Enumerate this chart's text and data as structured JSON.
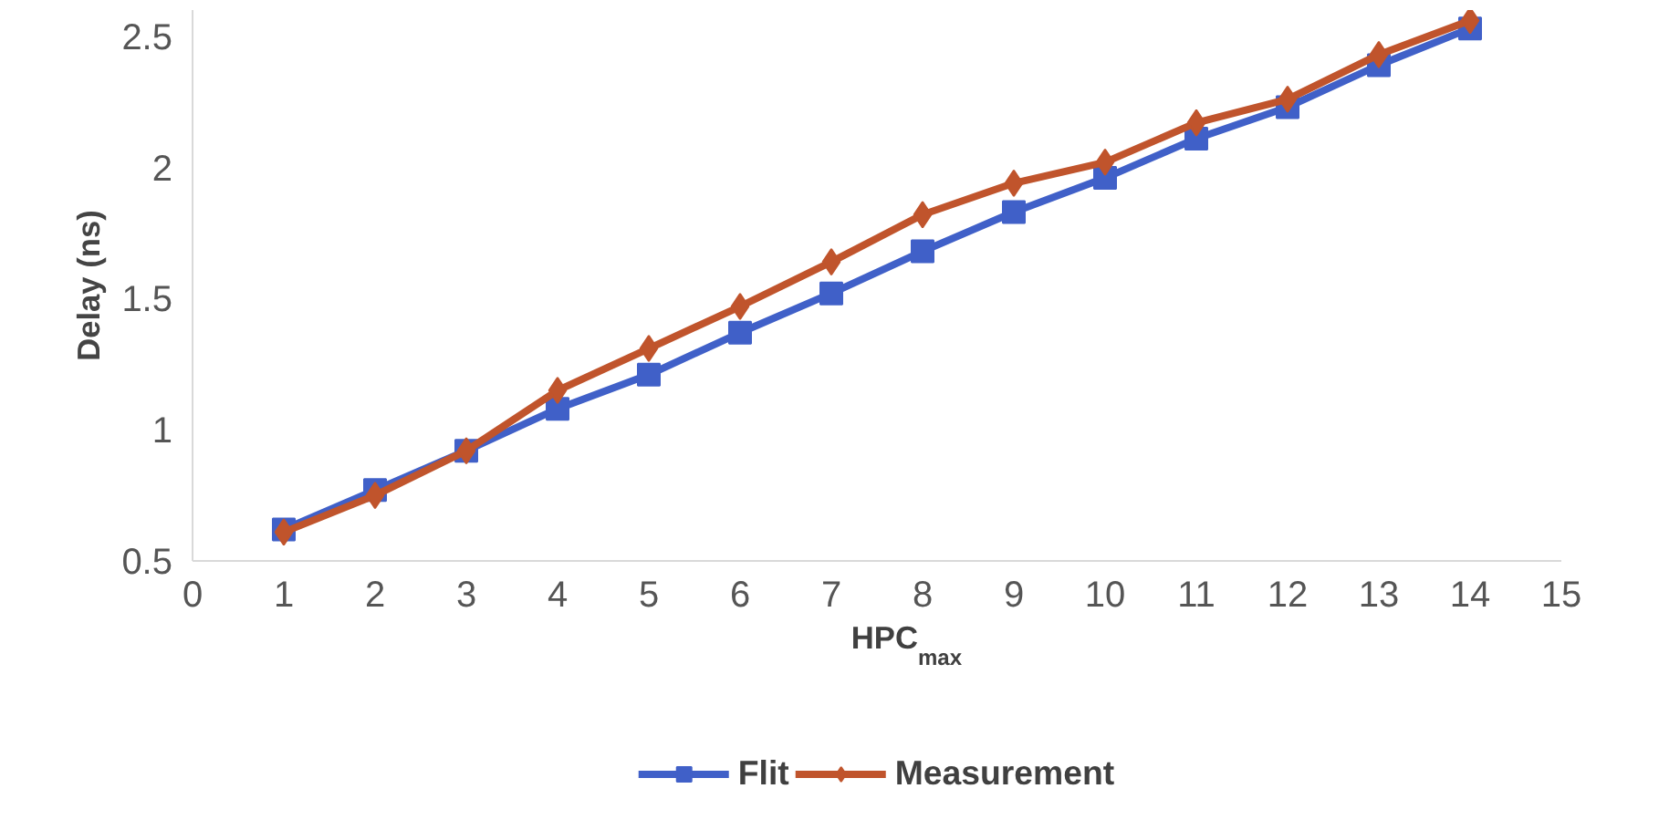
{
  "chart_data": {
    "type": "line",
    "xlabel": "HPC$_{max}$",
    "ylabel": "Delay (ns)",
    "x": [
      1,
      2,
      3,
      4,
      5,
      6,
      7,
      8,
      9,
      10,
      11,
      12,
      13,
      14
    ],
    "series": [
      {
        "name": "Flit",
        "color": "#4060c8",
        "marker": "square",
        "values": [
          0.62,
          0.77,
          0.92,
          1.08,
          1.21,
          1.37,
          1.52,
          1.68,
          1.83,
          1.96,
          2.11,
          2.23,
          2.39,
          2.53
        ]
      },
      {
        "name": "Measurement",
        "color": "#c0542c",
        "marker": "diamond",
        "values": [
          0.61,
          0.75,
          0.92,
          1.15,
          1.31,
          1.47,
          1.64,
          1.82,
          1.94,
          2.02,
          2.17,
          2.26,
          2.43,
          2.56
        ]
      }
    ],
    "xlim": [
      0,
      15
    ],
    "ylim": [
      0.5,
      2.6
    ],
    "xticks": [
      0,
      1,
      2,
      3,
      4,
      5,
      6,
      7,
      8,
      9,
      10,
      11,
      12,
      13,
      14,
      15
    ],
    "yticks": [
      0.5,
      1,
      1.5,
      2,
      2.5
    ],
    "grid": false,
    "legend": "bottom",
    "line_style": "solid"
  }
}
